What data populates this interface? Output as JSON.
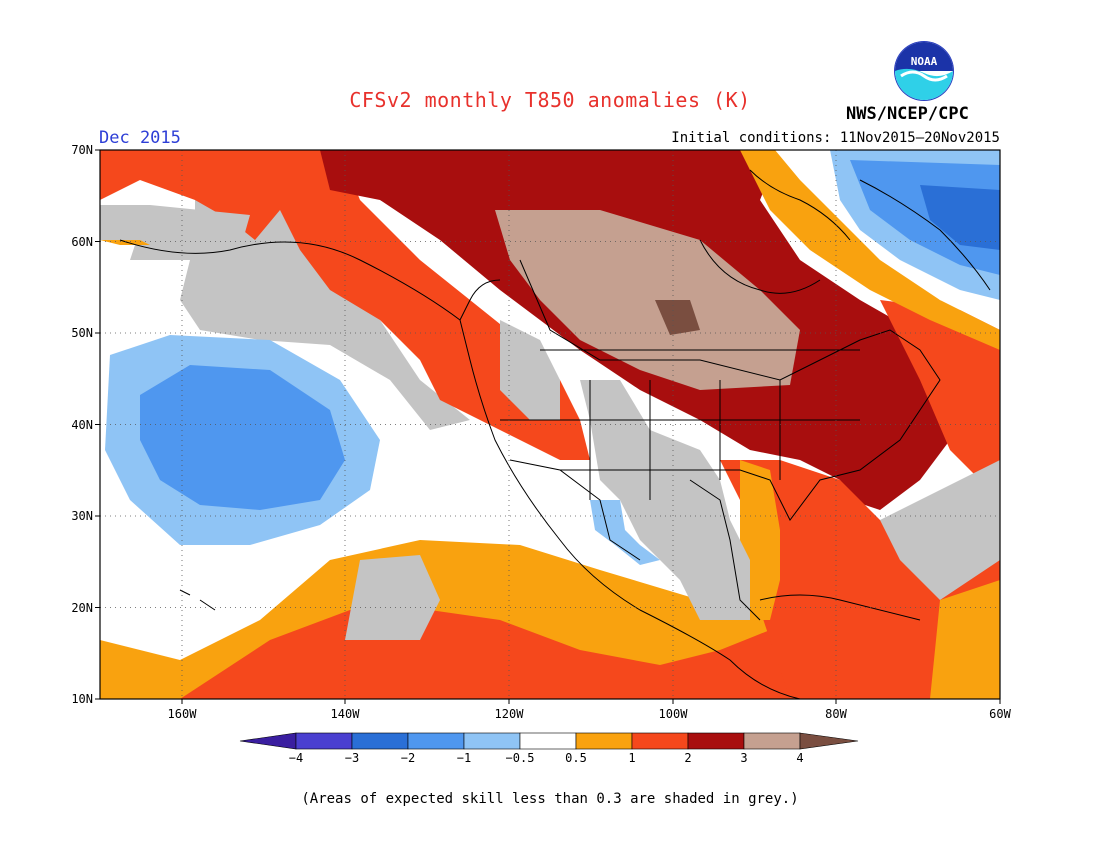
{
  "header": {
    "title": "CFSv2 monthly T850 anomalies (K)",
    "month": "Dec 2015",
    "initial_conditions": "Initial conditions: 11Nov2015—20Nov2015",
    "organization": "NWS/NCEP/CPC",
    "logo_text": "NOAA"
  },
  "map": {
    "lat_labels": [
      "70N",
      "60N",
      "50N",
      "40N",
      "30N",
      "20N",
      "10N"
    ],
    "lon_labels": [
      "160W",
      "140W",
      "120W",
      "100W",
      "80W",
      "60W"
    ],
    "lat_range": [
      10,
      70
    ],
    "lon_range": [
      -170,
      -60
    ],
    "anomaly_regions": [
      {
        "name": "subtropical-east-pacific-cold",
        "category": "-2 to -1"
      },
      {
        "name": "hudson-bay-great-plains-warm",
        "category": "3 to 4"
      },
      {
        "name": "eastern-us-warm",
        "category": "2 to 3"
      },
      {
        "name": "labrador-sea-cold",
        "category": "-2 to -1"
      }
    ]
  },
  "legend": {
    "bins": [
      {
        "color": "#3a1ea0"
      },
      {
        "color": "#4a3fd0"
      },
      {
        "color": "#2a6fd6"
      },
      {
        "color": "#4f97ef"
      },
      {
        "color": "#8fc4f5"
      },
      {
        "color": "#ffffff"
      },
      {
        "color": "#f9a20f"
      },
      {
        "color": "#f5481c"
      },
      {
        "color": "#a80e0e"
      },
      {
        "color": "#c5a090"
      },
      {
        "color": "#7a4e40"
      }
    ],
    "tick_labels": [
      "−4",
      "−3",
      "−2",
      "−1",
      "−0.5",
      "0.5",
      "1",
      "2",
      "3",
      "4"
    ]
  },
  "footnote": "(Areas of expected skill less than 0.3 are shaded in grey.)",
  "colors": {
    "skill_grey": "#c4c4c4",
    "title": "#e8312c",
    "month": "#2d3ed6"
  }
}
